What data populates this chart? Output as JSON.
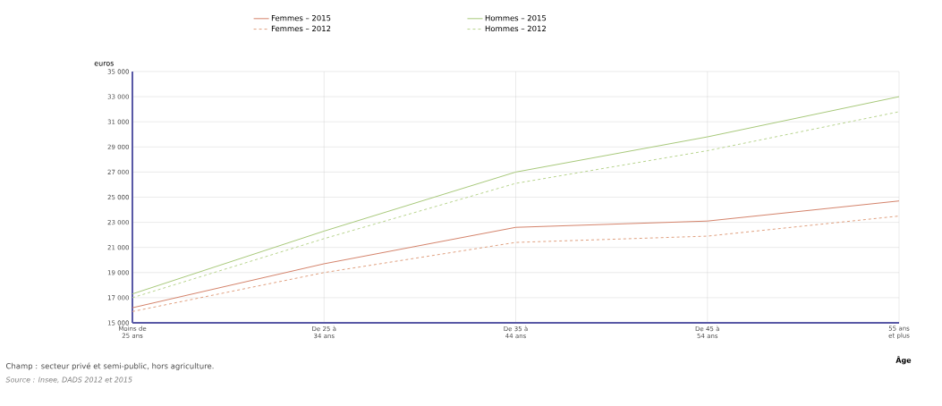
{
  "chart_data": {
    "type": "line",
    "categories": [
      "Moins de 25 ans",
      "De 25 à 34 ans",
      "De 35 à 44 ans",
      "De 45 à 54 ans",
      "55 ans et plus"
    ],
    "series": [
      {
        "name": "Femmes – 2015",
        "color": "#d4836a",
        "line_style": "solid",
        "values": [
          16200,
          19700,
          22600,
          23100,
          24700
        ]
      },
      {
        "name": "Femmes – 2012",
        "color": "#e0a080",
        "line_style": "dashed",
        "values": [
          15900,
          19000,
          21400,
          21900,
          23500
        ]
      },
      {
        "name": "Hommes – 2015",
        "color": "#a8c97a",
        "line_style": "solid",
        "values": [
          17300,
          22300,
          27000,
          29800,
          33000
        ]
      },
      {
        "name": "Hommes – 2012",
        "color": "#b8d48e",
        "line_style": "dashed",
        "values": [
          17000,
          21700,
          26100,
          28700,
          31800
        ]
      }
    ],
    "ylabel": "euros",
    "xlabel": "Âge",
    "ylim": [
      15000,
      35000
    ],
    "yticks": [
      {
        "value": 15000,
        "label": "15 000"
      },
      {
        "value": 17000,
        "label": "17 000"
      },
      {
        "value": 19000,
        "label": "19 000"
      },
      {
        "value": 21000,
        "label": "21 000"
      },
      {
        "value": 23000,
        "label": "23 000"
      },
      {
        "value": 25000,
        "label": "25 000"
      },
      {
        "value": 27000,
        "label": "27 000"
      },
      {
        "value": 29000,
        "label": "29 000"
      },
      {
        "value": 31000,
        "label": "31 000"
      },
      {
        "value": 33000,
        "label": "33 000"
      },
      {
        "value": 35000,
        "label": "35 000"
      }
    ],
    "grid": true,
    "legend": "top",
    "marker": "none",
    "annotations": [
      "Champ : secteur privé et semi-public, hors agriculture.",
      "Source : Insee, DADS 2012 et 2015"
    ]
  }
}
